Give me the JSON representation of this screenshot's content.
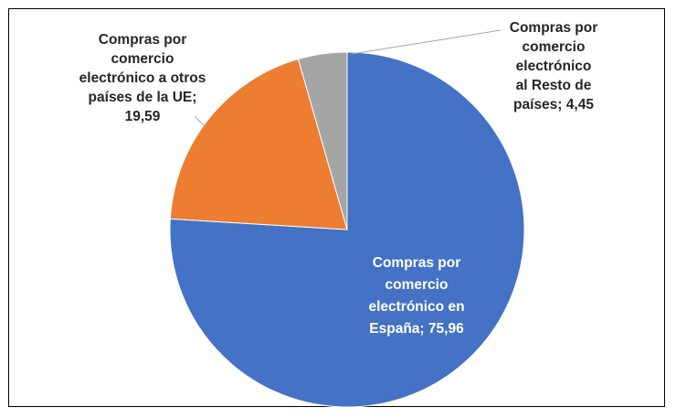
{
  "chart_data": {
    "type": "pie",
    "title": "",
    "slices": [
      {
        "category": "Compras por comercio electrónico en España",
        "value": 75.96,
        "color": "#4472C4",
        "label_lines": [
          "Compras por",
          "comercio",
          "electrónico en",
          "España; 75,96"
        ],
        "label_color": "#ffffff"
      },
      {
        "category": "Compras por comercio electrónico a otros países de la UE",
        "value": 19.59,
        "color": "#ED7D31",
        "label_lines": [
          "Compras por",
          "comercio",
          "electrónico a otros",
          "países de la UE;",
          "19,59"
        ],
        "label_color": "#262626"
      },
      {
        "category": "Compras por comercio electrónico al Resto de países",
        "value": 4.45,
        "color": "#A5A5A5",
        "label_lines": [
          "Compras  por",
          "comercio",
          "electrónico",
          "al Resto de",
          "países; 4,45"
        ],
        "label_color": "#262626"
      }
    ],
    "legend": "none",
    "data_labels": "category; value"
  }
}
